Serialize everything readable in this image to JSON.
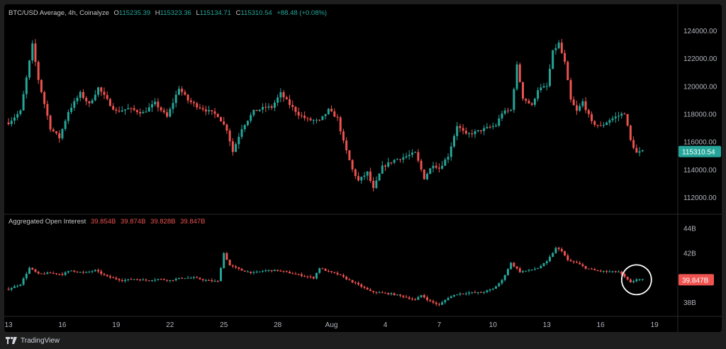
{
  "header": {
    "symbol": "BTC/USD Average, 4h, Coinalyze",
    "o_label": "O",
    "o": "115235.39",
    "h_label": "H",
    "h": "115323.36",
    "l_label": "L",
    "l": "115134.71",
    "c_label": "C",
    "c": "115310.54",
    "change": "+88.48 (+0.08%)"
  },
  "oi_header": {
    "name": "Aggregated Open Interest",
    "o": "39.854B",
    "h": "39.874B",
    "l": "39.828B",
    "c": "39.847B"
  },
  "footer": {
    "brand": "TradingView"
  },
  "colors": {
    "up": "#26a69a",
    "down": "#ef5350",
    "background": "#000000",
    "highlight_circle": "#ffffff"
  },
  "chart_data": [
    {
      "type": "candlestick",
      "title": "BTC/USD Average, 4h, Coinalyze",
      "timeframe": "4h",
      "ylim": [
        111000,
        125000
      ],
      "y_ticks": [
        "124000.00",
        "122000.00",
        "120000.00",
        "118000.00",
        "116000.00",
        "114000.00",
        "112000.00"
      ],
      "y_tick_values": [
        124000,
        122000,
        120000,
        118000,
        116000,
        114000,
        112000
      ],
      "last_price_label": "115310.54",
      "last_price": 115310.54,
      "x_ticks": [
        "13",
        "16",
        "19",
        "22",
        "25",
        "28",
        "Aug",
        "4",
        "7",
        "10",
        "13",
        "16",
        "19"
      ],
      "x_tick_bar_index": [
        0,
        18,
        36,
        54,
        72,
        90,
        108,
        126,
        144,
        162,
        180,
        198,
        216
      ],
      "series_path": [
        [
          0,
          117400
        ],
        [
          4,
          118200
        ],
        [
          8,
          123000
        ],
        [
          10,
          120500
        ],
        [
          14,
          117000
        ],
        [
          17,
          116300
        ],
        [
          20,
          118200
        ],
        [
          24,
          119500
        ],
        [
          27,
          118700
        ],
        [
          30,
          119900
        ],
        [
          34,
          118700
        ],
        [
          36,
          118200
        ],
        [
          40,
          118400
        ],
        [
          45,
          118100
        ],
        [
          49,
          118800
        ],
        [
          53,
          117800
        ],
        [
          57,
          119900
        ],
        [
          60,
          119000
        ],
        [
          63,
          118600
        ],
        [
          67,
          118200
        ],
        [
          70,
          117900
        ],
        [
          73,
          116900
        ],
        [
          75,
          115300
        ],
        [
          78,
          117000
        ],
        [
          82,
          118200
        ],
        [
          86,
          118500
        ],
        [
          88,
          118500
        ],
        [
          91,
          119500
        ],
        [
          94,
          118700
        ],
        [
          97,
          118000
        ],
        [
          100,
          117600
        ],
        [
          104,
          117500
        ],
        [
          107,
          118300
        ],
        [
          110,
          117700
        ],
        [
          112,
          116000
        ],
        [
          115,
          114000
        ],
        [
          117,
          113200
        ],
        [
          120,
          113800
        ],
        [
          122,
          112600
        ],
        [
          125,
          114200
        ],
        [
          129,
          114700
        ],
        [
          132,
          114900
        ],
        [
          136,
          115200
        ],
        [
          139,
          113400
        ],
        [
          142,
          114400
        ],
        [
          144,
          114100
        ],
        [
          147,
          115000
        ],
        [
          150,
          117200
        ],
        [
          153,
          116500
        ],
        [
          156,
          116700
        ],
        [
          160,
          117000
        ],
        [
          163,
          117200
        ],
        [
          165,
          118100
        ],
        [
          168,
          118300
        ],
        [
          170,
          121500
        ],
        [
          172,
          119200
        ],
        [
          175,
          118600
        ],
        [
          177,
          119800
        ],
        [
          180,
          120000
        ],
        [
          182,
          122500
        ],
        [
          184,
          123100
        ],
        [
          186,
          121700
        ],
        [
          188,
          119000
        ],
        [
          190,
          118200
        ],
        [
          192,
          118900
        ],
        [
          195,
          117400
        ],
        [
          198,
          117100
        ],
        [
          201,
          117600
        ],
        [
          203,
          117800
        ],
        [
          206,
          118100
        ],
        [
          208,
          116100
        ],
        [
          210,
          115200
        ],
        [
          212,
          115310
        ]
      ]
    },
    {
      "type": "candlestick",
      "title": "Aggregated Open Interest",
      "units": "B",
      "ylim": [
        37,
        44
      ],
      "y_ticks": [
        "44B",
        "42B",
        "40B",
        "38B"
      ],
      "y_tick_values": [
        44,
        42,
        40,
        38
      ],
      "last_value_label": "39.847B",
      "last_value": 39.847,
      "series_path": [
        [
          0,
          39.1
        ],
        [
          4,
          39.5
        ],
        [
          7,
          40.8
        ],
        [
          10,
          40.3
        ],
        [
          14,
          40.4
        ],
        [
          18,
          40.3
        ],
        [
          21,
          40.6
        ],
        [
          25,
          40.4
        ],
        [
          29,
          40.6
        ],
        [
          33,
          40.1
        ],
        [
          38,
          39.8
        ],
        [
          42,
          39.9
        ],
        [
          46,
          39.8
        ],
        [
          50,
          39.9
        ],
        [
          54,
          39.8
        ],
        [
          58,
          40.0
        ],
        [
          62,
          40.0
        ],
        [
          66,
          39.8
        ],
        [
          70,
          39.7
        ],
        [
          72,
          42.0
        ],
        [
          74,
          41.0
        ],
        [
          78,
          40.6
        ],
        [
          82,
          40.4
        ],
        [
          86,
          40.6
        ],
        [
          90,
          40.6
        ],
        [
          94,
          40.4
        ],
        [
          98,
          40.2
        ],
        [
          102,
          40.0
        ],
        [
          104,
          40.8
        ],
        [
          107,
          40.5
        ],
        [
          110,
          40.3
        ],
        [
          114,
          39.8
        ],
        [
          118,
          39.3
        ],
        [
          121,
          38.9
        ],
        [
          124,
          38.8
        ],
        [
          128,
          38.7
        ],
        [
          132,
          38.5
        ],
        [
          136,
          38.2
        ],
        [
          138,
          38.6
        ],
        [
          141,
          38.1
        ],
        [
          144,
          37.8
        ],
        [
          147,
          38.4
        ],
        [
          150,
          38.7
        ],
        [
          154,
          38.8
        ],
        [
          158,
          38.8
        ],
        [
          162,
          39.1
        ],
        [
          165,
          39.8
        ],
        [
          168,
          41.2
        ],
        [
          171,
          40.5
        ],
        [
          174,
          40.6
        ],
        [
          177,
          40.8
        ],
        [
          180,
          41.3
        ],
        [
          183,
          42.4
        ],
        [
          185,
          42.2
        ],
        [
          187,
          41.4
        ],
        [
          190,
          41.2
        ],
        [
          193,
          40.8
        ],
        [
          196,
          40.6
        ],
        [
          200,
          40.5
        ],
        [
          204,
          40.5
        ],
        [
          208,
          39.6
        ],
        [
          210,
          39.9
        ],
        [
          212,
          39.847
        ]
      ]
    }
  ]
}
